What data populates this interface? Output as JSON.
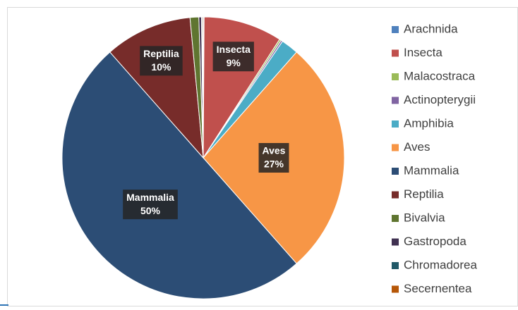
{
  "chart_data": {
    "type": "pie",
    "categories": [
      "Arachnida",
      "Insecta",
      "Malacostraca",
      "Actinopterygii",
      "Amphibia",
      "Aves",
      "Mammalia",
      "Reptilia",
      "Bivalvia",
      "Gastropoda",
      "Chromadorea",
      "Secernentea"
    ],
    "values": [
      0.1,
      9,
      0.2,
      0.2,
      2,
      27,
      50,
      10,
      1,
      0.3,
      0.1,
      0.1
    ],
    "value_labels": [
      null,
      "9%",
      null,
      null,
      null,
      "27%",
      "50%",
      "10%",
      null,
      null,
      null,
      null
    ],
    "colors": [
      "#4f81bd",
      "#c0504d",
      "#9bbb59",
      "#8064a2",
      "#4bacc6",
      "#f79646",
      "#2c4d75",
      "#772c2a",
      "#5f7530",
      "#403151",
      "#215968",
      "#b65708"
    ],
    "legend": "right"
  }
}
